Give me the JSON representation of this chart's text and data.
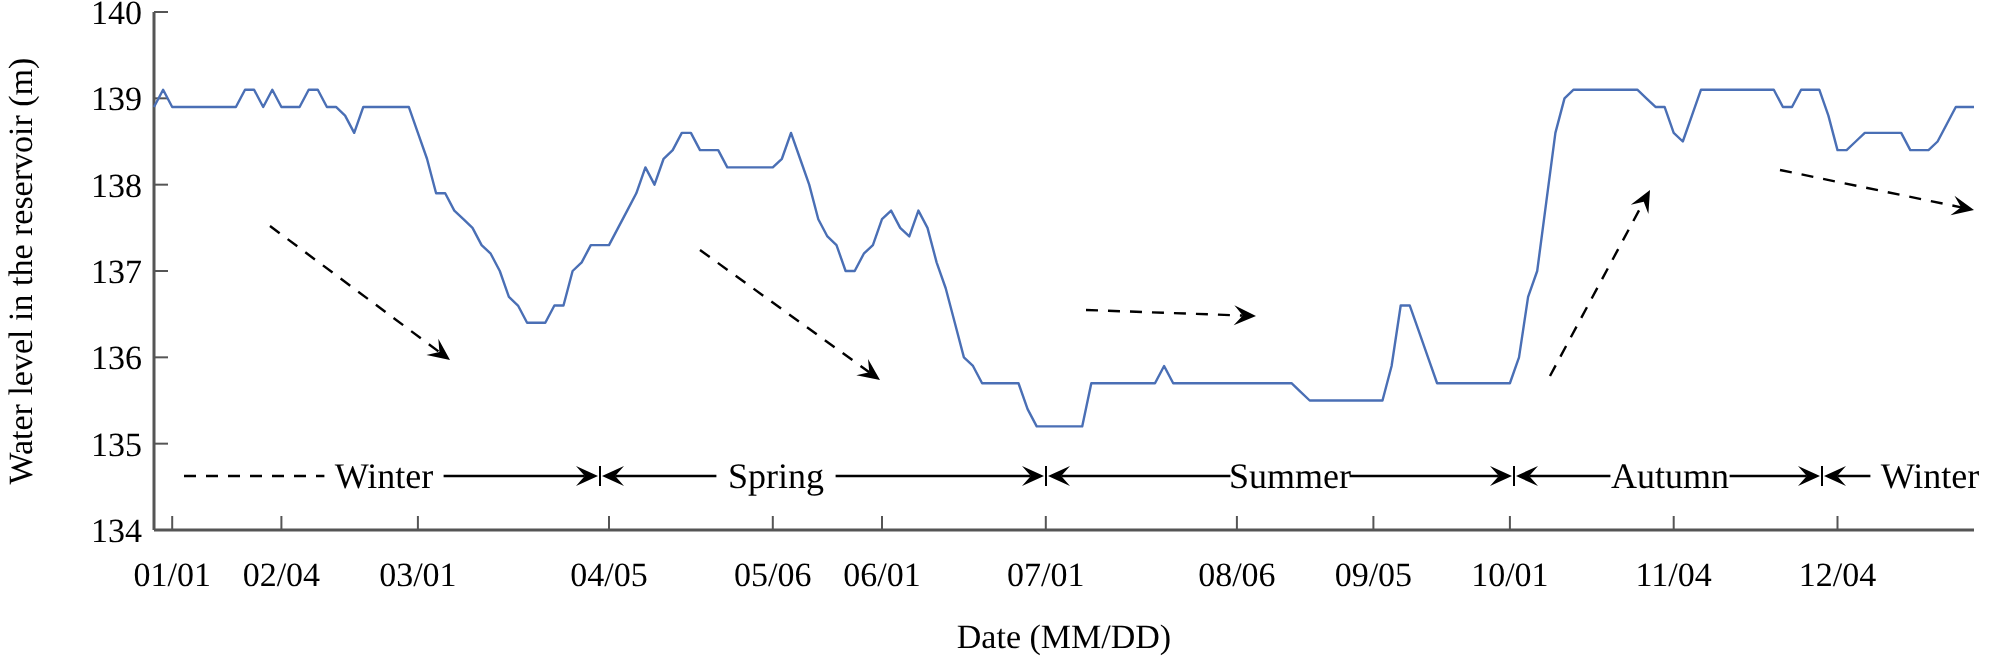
{
  "chart_data": {
    "type": "line",
    "xlabel": "Date (MM/DD)",
    "ylabel": "Water level in the reservoir (m)",
    "ylim": [
      134,
      140
    ],
    "yticks": [
      134,
      135,
      136,
      137,
      138,
      139,
      140
    ],
    "categories": [
      null,
      null,
      "01/01",
      null,
      null,
      null,
      null,
      null,
      null,
      null,
      null,
      null,
      null,
      null,
      "02/04",
      null,
      null,
      null,
      null,
      null,
      null,
      null,
      null,
      null,
      null,
      null,
      null,
      null,
      null,
      "03/01",
      null,
      null,
      null,
      null,
      null,
      null,
      null,
      null,
      null,
      null,
      null,
      null,
      null,
      null,
      null,
      null,
      null,
      null,
      null,
      null,
      "04/05",
      null,
      null,
      null,
      null,
      null,
      null,
      null,
      null,
      null,
      null,
      null,
      null,
      null,
      null,
      null,
      null,
      null,
      "05/06",
      null,
      null,
      null,
      null,
      null,
      null,
      null,
      null,
      null,
      null,
      null,
      "06/01",
      null,
      null,
      null,
      null,
      null,
      null,
      null,
      null,
      null,
      null,
      null,
      null,
      null,
      null,
      null,
      null,
      null,
      "07/01",
      null,
      null,
      null,
      null,
      null,
      null,
      null,
      null,
      null,
      null,
      null,
      null,
      null,
      null,
      null,
      null,
      null,
      null,
      null,
      null,
      "08/06",
      null,
      null,
      null,
      null,
      null,
      null,
      null,
      null,
      null,
      null,
      null,
      null,
      null,
      null,
      "09/05",
      null,
      null,
      null,
      null,
      null,
      null,
      null,
      null,
      null,
      null,
      null,
      null,
      null,
      null,
      "10/01",
      null,
      null,
      null,
      null,
      null,
      null,
      null,
      null,
      null,
      null,
      null,
      null,
      null,
      null,
      null,
      null,
      null,
      "11/04",
      null,
      null,
      null,
      null,
      null,
      null,
      null,
      null,
      null,
      null,
      null,
      null,
      null,
      null,
      null,
      null,
      null,
      "12/04",
      null,
      null,
      null,
      null,
      null,
      null,
      null,
      null,
      null,
      null,
      null,
      null,
      null,
      null,
      null
    ],
    "grid": false,
    "marker": "none",
    "line_style": "solid",
    "series": [
      {
        "color": "#4a6fb5",
        "values": [
          138.9,
          139.1,
          138.9,
          138.9,
          138.9,
          138.9,
          138.9,
          138.9,
          138.9,
          138.9,
          139.1,
          139.1,
          138.9,
          139.1,
          138.9,
          138.9,
          138.9,
          139.1,
          139.1,
          138.9,
          138.9,
          138.8,
          138.6,
          138.9,
          138.9,
          138.9,
          138.9,
          138.9,
          138.9,
          138.6,
          138.3,
          137.9,
          137.9,
          137.7,
          137.6,
          137.5,
          137.3,
          137.2,
          137.0,
          136.7,
          136.6,
          136.4,
          136.4,
          136.4,
          136.6,
          136.6,
          137.0,
          137.1,
          137.3,
          137.3,
          137.3,
          137.5,
          137.7,
          137.9,
          138.2,
          138.0,
          138.3,
          138.4,
          138.6,
          138.6,
          138.4,
          138.4,
          138.4,
          138.2,
          138.2,
          138.2,
          138.2,
          138.2,
          138.2,
          138.3,
          138.6,
          138.3,
          138.0,
          137.6,
          137.4,
          137.3,
          137.0,
          137.0,
          137.2,
          137.3,
          137.6,
          137.7,
          137.5,
          137.4,
          137.7,
          137.5,
          137.1,
          136.8,
          136.4,
          136.0,
          135.9,
          135.7,
          135.7,
          135.7,
          135.7,
          135.7,
          135.4,
          135.2,
          135.2,
          135.2,
          135.2,
          135.2,
          135.2,
          135.7,
          135.7,
          135.7,
          135.7,
          135.7,
          135.7,
          135.7,
          135.7,
          135.9,
          135.7,
          135.7,
          135.7,
          135.7,
          135.7,
          135.7,
          135.7,
          135.7,
          135.7,
          135.7,
          135.7,
          135.7,
          135.7,
          135.7,
          135.6,
          135.5,
          135.5,
          135.5,
          135.5,
          135.5,
          135.5,
          135.5,
          135.5,
          135.5,
          135.9,
          136.6,
          136.6,
          136.3,
          136.0,
          135.7,
          135.7,
          135.7,
          135.7,
          135.7,
          135.7,
          135.7,
          135.7,
          135.7,
          136.0,
          136.7,
          137.0,
          137.8,
          138.6,
          139.0,
          139.1,
          139.1,
          139.1,
          139.1,
          139.1,
          139.1,
          139.1,
          139.1,
          139.0,
          138.9,
          138.9,
          138.6,
          138.5,
          138.8,
          139.1,
          139.1,
          139.1,
          139.1,
          139.1,
          139.1,
          139.1,
          139.1,
          139.1,
          138.9,
          138.9,
          139.1,
          139.1,
          139.1,
          138.8,
          138.4,
          138.4,
          138.5,
          138.6,
          138.6,
          138.6,
          138.6,
          138.6,
          138.4,
          138.4,
          138.4,
          138.5,
          138.7,
          138.9,
          138.9,
          138.9
        ]
      }
    ],
    "annotations": [
      "Winter",
      "Spring",
      "Summer",
      "Autumn",
      "Winter"
    ]
  }
}
